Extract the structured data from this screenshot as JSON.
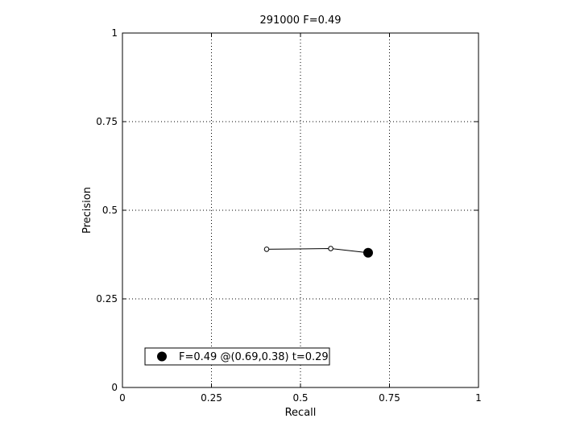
{
  "chart_data": {
    "type": "line",
    "title": "291000 F=0.49",
    "xlabel": "Recall",
    "ylabel": "Precision",
    "xlim": [
      0,
      1
    ],
    "ylim": [
      0,
      1
    ],
    "grid": true,
    "xticks": [
      0,
      0.25,
      0.5,
      0.75,
      1
    ],
    "xtick_labels": [
      "0",
      "0.25",
      "0.5",
      "0.75",
      "1"
    ],
    "yticks": [
      0,
      0.25,
      0.5,
      0.75,
      1
    ],
    "ytick_labels": [
      "0",
      "0.25",
      "0.5",
      "0.75",
      "1"
    ],
    "series": [
      {
        "x": [
          0.405,
          0.585,
          0.69
        ],
        "y": [
          0.39,
          0.392,
          0.38
        ],
        "color": "#000000"
      }
    ],
    "highlight_point": {
      "x": 0.69,
      "y": 0.38
    },
    "legend": {
      "position": "bottom-left",
      "text": "F=0.49 @(0.69,0.38) t=0.29"
    }
  }
}
